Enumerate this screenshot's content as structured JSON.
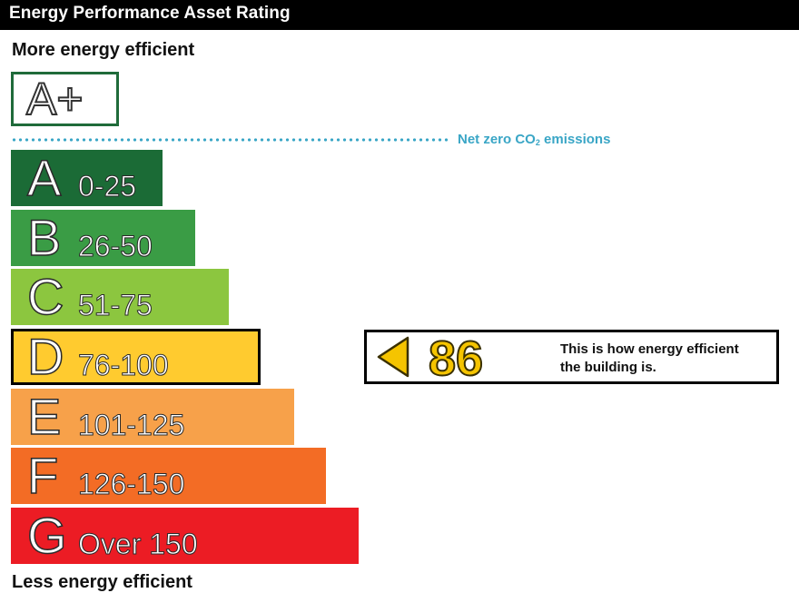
{
  "header": {
    "title": "Energy Performance Asset Rating"
  },
  "scale": {
    "top_label": "More energy efficient",
    "bottom_label": "Less energy efficient",
    "aplus_label": "A+",
    "net_zero_text": "Net zero CO",
    "net_zero_sub": "2",
    "net_zero_suffix": " emissions",
    "net_zero_color": "#3aa6c6"
  },
  "bands": [
    {
      "letter": "A",
      "range": "0-25",
      "color": "#1b6b36"
    },
    {
      "letter": "B",
      "range": "26-50",
      "color": "#3a9c45"
    },
    {
      "letter": "C",
      "range": "51-75",
      "color": "#8cc63f"
    },
    {
      "letter": "D",
      "range": "76-100",
      "color": "#ffcb2f",
      "current": true
    },
    {
      "letter": "E",
      "range": "101-125",
      "color": "#f7a14a"
    },
    {
      "letter": "F",
      "range": "126-150",
      "color": "#f36c25"
    },
    {
      "letter": "G",
      "range": "Over 150",
      "color": "#ec1c24"
    }
  ],
  "rating": {
    "score": "86",
    "score_color": "#f5c400",
    "caption_line1": "This is how energy efficient",
    "caption_line2": "the building is.",
    "arrow_icon": "left-arrow-icon"
  }
}
